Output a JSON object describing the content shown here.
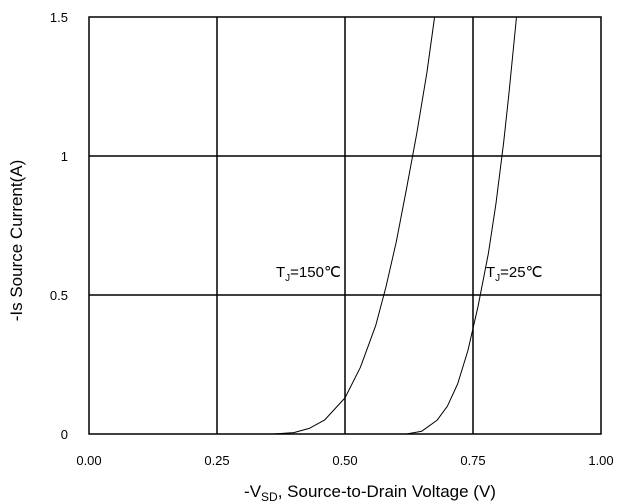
{
  "chart_data": {
    "type": "line",
    "title": "",
    "xlabel_prefix": "-V",
    "xlabel_sub": "SD",
    "xlabel_suffix": ", Source-to-Drain Voltage (V)",
    "ylabel": "-Is Source Current(A)",
    "xlim": [
      0,
      1.0
    ],
    "ylim": [
      0,
      1.5
    ],
    "x_ticks": [
      "0.00",
      "0.25",
      "0.50",
      "0.75",
      "1.00"
    ],
    "y_ticks": [
      "0",
      "0.5",
      "1",
      "1.5"
    ],
    "x_tick_values": [
      0,
      0.25,
      0.5,
      0.75,
      1.0
    ],
    "y_tick_values": [
      0,
      0.5,
      1.0,
      1.5
    ],
    "grid": true,
    "series": [
      {
        "label_main": "T",
        "label_sub": "J",
        "label_value": "=150℃",
        "points": [
          [
            0.25,
            0.0
          ],
          [
            0.36,
            0.0
          ],
          [
            0.4,
            0.005
          ],
          [
            0.43,
            0.02
          ],
          [
            0.46,
            0.05
          ],
          [
            0.5,
            0.13
          ],
          [
            0.53,
            0.24
          ],
          [
            0.56,
            0.39
          ],
          [
            0.58,
            0.53
          ],
          [
            0.6,
            0.69
          ],
          [
            0.62,
            0.88
          ],
          [
            0.64,
            1.08
          ],
          [
            0.66,
            1.3
          ],
          [
            0.675,
            1.5
          ]
        ]
      },
      {
        "label_main": "T",
        "label_sub": "J",
        "label_value": "=25℃",
        "points": [
          [
            0.62,
            0.0
          ],
          [
            0.65,
            0.01
          ],
          [
            0.68,
            0.05
          ],
          [
            0.7,
            0.1
          ],
          [
            0.72,
            0.18
          ],
          [
            0.74,
            0.3
          ],
          [
            0.76,
            0.46
          ],
          [
            0.78,
            0.65
          ],
          [
            0.795,
            0.83
          ],
          [
            0.81,
            1.05
          ],
          [
            0.82,
            1.22
          ],
          [
            0.835,
            1.5
          ]
        ]
      }
    ],
    "line_color": "#000000"
  }
}
